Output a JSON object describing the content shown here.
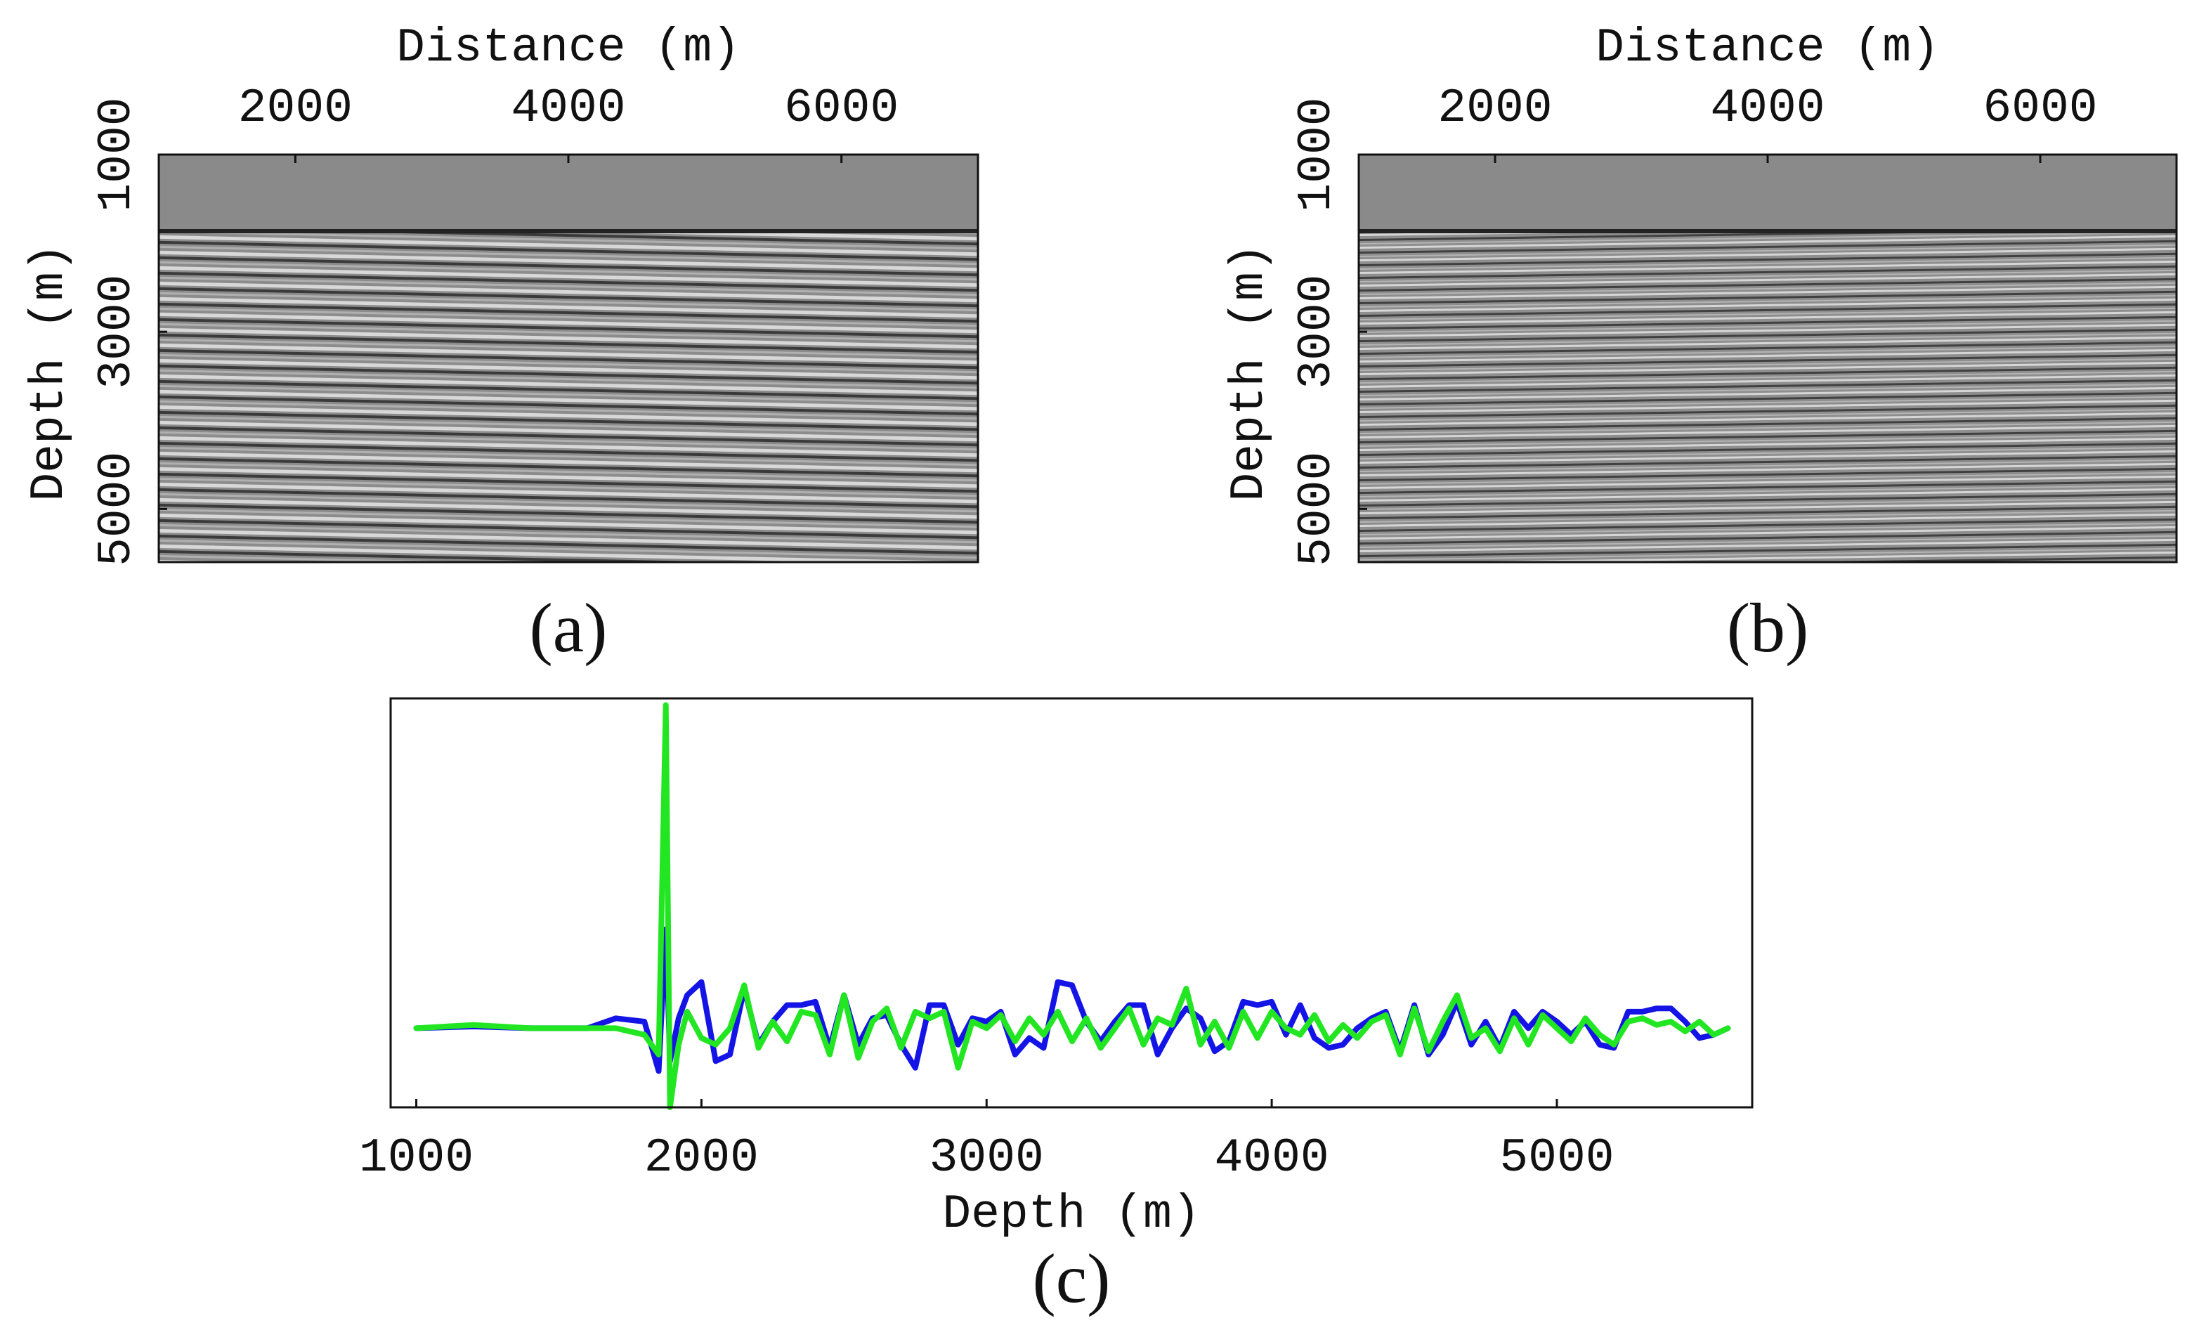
{
  "chart_data": [
    {
      "type": "image",
      "caption": "(a)",
      "xlabel": "Distance (m)",
      "ylabel": "Depth (m)",
      "xaxis": "top",
      "xlim": [
        1000,
        7000
      ],
      "ylim": [
        5600,
        1000
      ],
      "xticks": [
        2000,
        4000,
        6000
      ],
      "yticks": [
        1000,
        3000,
        5000
      ]
    },
    {
      "type": "image",
      "caption": "(b)",
      "xlabel": "Distance (m)",
      "ylabel": "Depth (m)",
      "xaxis": "top",
      "xlim": [
        1000,
        7000
      ],
      "ylim": [
        5600,
        1000
      ],
      "xticks": [
        2000,
        4000,
        6000
      ],
      "yticks": [
        1000,
        3000,
        5000
      ]
    },
    {
      "type": "line",
      "caption": "(c)",
      "xlabel": "Depth (m)",
      "xaxis": "bottom",
      "xlim": [
        910,
        5685
      ],
      "ylim": [
        -0.24,
        1
      ],
      "xticks": [
        1000,
        2000,
        3000,
        4000,
        5000
      ],
      "x": [
        1000,
        1200,
        1400,
        1600,
        1700,
        1800,
        1850,
        1875,
        1890,
        1920,
        1950,
        2000,
        2050,
        2100,
        2150,
        2200,
        2250,
        2300,
        2350,
        2400,
        2450,
        2500,
        2550,
        2600,
        2650,
        2700,
        2750,
        2800,
        2850,
        2900,
        2950,
        3000,
        3050,
        3100,
        3150,
        3200,
        3250,
        3300,
        3350,
        3400,
        3450,
        3500,
        3550,
        3600,
        3650,
        3700,
        3750,
        3800,
        3850,
        3900,
        3950,
        4000,
        4050,
        4100,
        4150,
        4200,
        4250,
        4300,
        4350,
        4400,
        4450,
        4500,
        4550,
        4600,
        4650,
        4700,
        4750,
        4800,
        4850,
        4900,
        4950,
        5000,
        5050,
        5100,
        5150,
        5200,
        5250,
        5300,
        5350,
        5400,
        5450,
        5500,
        5550,
        5600
      ],
      "series": [
        {
          "color": "#1414e6",
          "values": [
            0,
            0.005,
            0,
            0,
            0.03,
            0.02,
            -0.13,
            0.3,
            -0.1,
            0.03,
            0.1,
            0.14,
            -0.1,
            -0.08,
            0.12,
            -0.05,
            0.02,
            0.07,
            0.07,
            0.08,
            -0.06,
            0.1,
            -0.05,
            0.03,
            0.04,
            -0.05,
            -0.12,
            0.07,
            0.07,
            -0.05,
            0.03,
            0.02,
            0.05,
            -0.08,
            -0.03,
            -0.06,
            0.14,
            0.13,
            0.02,
            -0.04,
            0.02,
            0.07,
            0.07,
            -0.08,
            0,
            0.06,
            0.03,
            -0.07,
            -0.04,
            0.08,
            0.07,
            0.08,
            -0.02,
            0.07,
            -0.03,
            -0.06,
            -0.05,
            0,
            0.03,
            0.05,
            -0.07,
            0.07,
            -0.08,
            -0.02,
            0.08,
            -0.05,
            0.02,
            -0.06,
            0.05,
            0,
            0.05,
            0.02,
            -0.02,
            0.02,
            -0.05,
            -0.06,
            0.05,
            0.05,
            0.06,
            0.06,
            0.02,
            -0.03,
            -0.02,
            0
          ]
        },
        {
          "color": "#22e622",
          "values": [
            0,
            0.01,
            0,
            0,
            0,
            -0.02,
            -0.08,
            0.98,
            -0.24,
            -0.05,
            0.05,
            -0.03,
            -0.05,
            0,
            0.13,
            -0.06,
            0.02,
            -0.04,
            0.05,
            0.04,
            -0.08,
            0.1,
            -0.09,
            0.02,
            0.06,
            -0.06,
            0.05,
            0.03,
            0.05,
            -0.12,
            0.02,
            0,
            0.04,
            -0.04,
            0.03,
            -0.02,
            0.05,
            -0.04,
            0.03,
            -0.06,
            0,
            0.06,
            -0.05,
            0.03,
            0.01,
            0.12,
            -0.05,
            0.02,
            -0.06,
            0.05,
            -0.03,
            0.05,
            0,
            -0.02,
            0.04,
            -0.04,
            0.01,
            -0.03,
            0.02,
            0.04,
            -0.08,
            0.06,
            -0.07,
            0.02,
            0.1,
            -0.03,
            0,
            -0.07,
            0.03,
            -0.05,
            0.04,
            0,
            -0.04,
            0.03,
            -0.02,
            -0.05,
            0.02,
            0.03,
            0.01,
            0.02,
            -0.01,
            0.02,
            -0.02,
            0
          ]
        }
      ]
    }
  ]
}
